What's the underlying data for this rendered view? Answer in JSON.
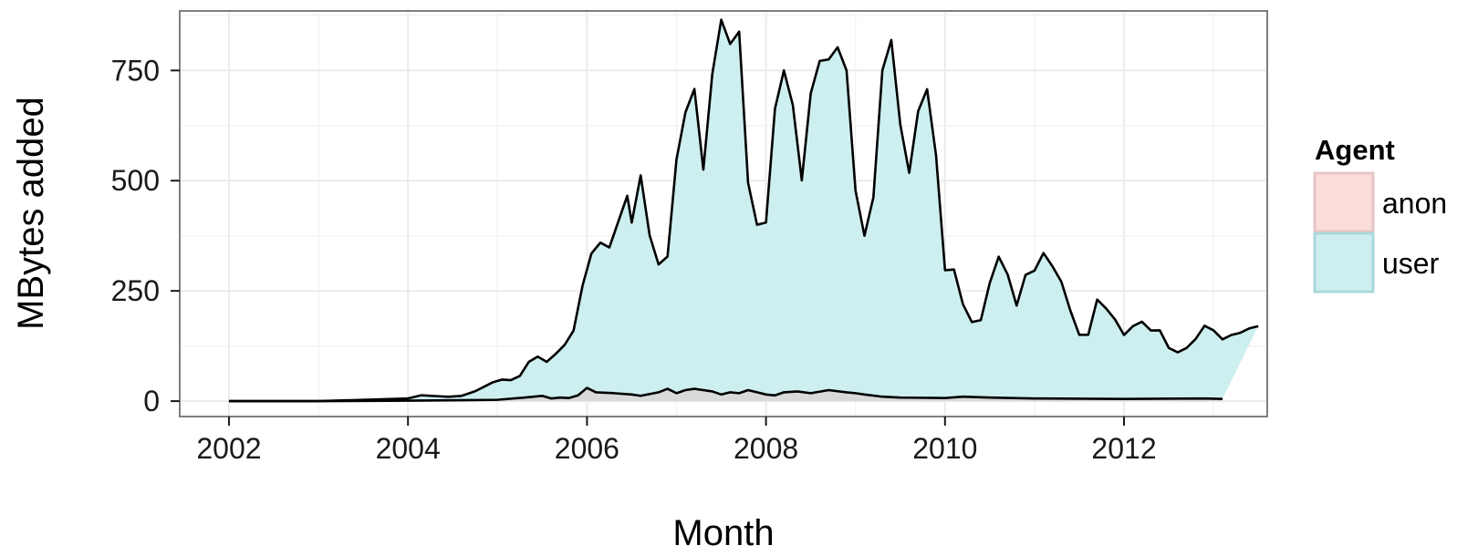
{
  "chart_data": {
    "type": "area",
    "stacked": true,
    "xlabel": "Month",
    "ylabel": "MBytes added",
    "xlim": [
      2001.45,
      2013.6
    ],
    "ylim": [
      -35,
      885
    ],
    "x_ticks": [
      2002,
      2004,
      2006,
      2008,
      2010,
      2012
    ],
    "x_tick_labels": [
      "2002",
      "2004",
      "2006",
      "2008",
      "2010",
      "2012"
    ],
    "y_ticks": [
      0,
      250,
      500,
      750
    ],
    "y_tick_labels": [
      "0",
      "250",
      "500",
      "750"
    ],
    "grid": true,
    "legend": {
      "title": "Agent",
      "position": "right"
    },
    "series": [
      {
        "name": "anon",
        "color": "#F8766D",
        "points": [
          [
            2002.0,
            0
          ],
          [
            2003.0,
            0
          ],
          [
            2004.0,
            1
          ],
          [
            2004.6,
            2
          ],
          [
            2005.0,
            3
          ],
          [
            2005.3,
            8
          ],
          [
            2005.5,
            12
          ],
          [
            2005.6,
            6
          ],
          [
            2005.7,
            8
          ],
          [
            2005.8,
            7
          ],
          [
            2005.9,
            13
          ],
          [
            2006.0,
            30
          ],
          [
            2006.1,
            20
          ],
          [
            2006.3,
            18
          ],
          [
            2006.5,
            15
          ],
          [
            2006.6,
            12
          ],
          [
            2006.8,
            20
          ],
          [
            2006.9,
            28
          ],
          [
            2007.0,
            18
          ],
          [
            2007.1,
            25
          ],
          [
            2007.2,
            28
          ],
          [
            2007.4,
            22
          ],
          [
            2007.5,
            15
          ],
          [
            2007.6,
            20
          ],
          [
            2007.7,
            18
          ],
          [
            2007.8,
            25
          ],
          [
            2007.9,
            20
          ],
          [
            2008.0,
            15
          ],
          [
            2008.1,
            13
          ],
          [
            2008.2,
            20
          ],
          [
            2008.35,
            22
          ],
          [
            2008.5,
            18
          ],
          [
            2008.7,
            25
          ],
          [
            2008.9,
            20
          ],
          [
            2009.0,
            18
          ],
          [
            2009.1,
            15
          ],
          [
            2009.3,
            10
          ],
          [
            2009.5,
            8
          ],
          [
            2010.0,
            7
          ],
          [
            2010.2,
            10
          ],
          [
            2010.5,
            8
          ],
          [
            2011.0,
            6
          ],
          [
            2012.0,
            5
          ],
          [
            2012.9,
            6
          ],
          [
            2013.1,
            5
          ]
        ]
      },
      {
        "name": "user",
        "color": "#00BFC4",
        "points": [
          [
            2002.0,
            0
          ],
          [
            2003.0,
            0
          ],
          [
            2004.0,
            5
          ],
          [
            2004.15,
            12
          ],
          [
            2004.3,
            10
          ],
          [
            2004.45,
            8
          ],
          [
            2004.6,
            10
          ],
          [
            2004.75,
            20
          ],
          [
            2004.85,
            30
          ],
          [
            2004.95,
            40
          ],
          [
            2005.05,
            45
          ],
          [
            2005.15,
            42
          ],
          [
            2005.25,
            50
          ],
          [
            2005.35,
            80
          ],
          [
            2005.45,
            90
          ],
          [
            2005.55,
            80
          ],
          [
            2005.65,
            100
          ],
          [
            2005.75,
            120
          ],
          [
            2005.85,
            150
          ],
          [
            2005.95,
            240
          ],
          [
            2006.05,
            310
          ],
          [
            2006.15,
            340
          ],
          [
            2006.25,
            330
          ],
          [
            2006.35,
            390
          ],
          [
            2006.45,
            450
          ],
          [
            2006.5,
            390
          ],
          [
            2006.6,
            500
          ],
          [
            2006.7,
            360
          ],
          [
            2006.8,
            290
          ],
          [
            2006.9,
            300
          ],
          [
            2007.0,
            530
          ],
          [
            2007.1,
            630
          ],
          [
            2007.2,
            680
          ],
          [
            2007.3,
            500
          ],
          [
            2007.4,
            720
          ],
          [
            2007.5,
            850
          ],
          [
            2007.6,
            790
          ],
          [
            2007.7,
            820
          ],
          [
            2007.8,
            470
          ],
          [
            2007.9,
            380
          ],
          [
            2008.0,
            390
          ],
          [
            2008.1,
            650
          ],
          [
            2008.2,
            730
          ],
          [
            2008.3,
            650
          ],
          [
            2008.4,
            480
          ],
          [
            2008.5,
            680
          ],
          [
            2008.6,
            750
          ],
          [
            2008.7,
            750
          ],
          [
            2008.8,
            780
          ],
          [
            2008.9,
            730
          ],
          [
            2009.0,
            460
          ],
          [
            2009.1,
            360
          ],
          [
            2009.2,
            450
          ],
          [
            2009.3,
            740
          ],
          [
            2009.4,
            810
          ],
          [
            2009.5,
            620
          ],
          [
            2009.6,
            510
          ],
          [
            2009.7,
            650
          ],
          [
            2009.8,
            700
          ],
          [
            2009.9,
            550
          ],
          [
            2010.0,
            290
          ],
          [
            2010.1,
            290
          ],
          [
            2010.2,
            210
          ],
          [
            2010.3,
            170
          ],
          [
            2010.4,
            175
          ],
          [
            2010.5,
            260
          ],
          [
            2010.6,
            320
          ],
          [
            2010.7,
            280
          ],
          [
            2010.8,
            210
          ],
          [
            2010.9,
            280
          ],
          [
            2011.0,
            290
          ],
          [
            2011.1,
            330
          ],
          [
            2011.2,
            300
          ],
          [
            2011.3,
            265
          ],
          [
            2011.4,
            200
          ],
          [
            2011.5,
            145
          ],
          [
            2011.6,
            145
          ],
          [
            2011.7,
            225
          ],
          [
            2011.8,
            205
          ],
          [
            2011.9,
            180
          ],
          [
            2012.0,
            145
          ],
          [
            2012.1,
            165
          ],
          [
            2012.2,
            175
          ],
          [
            2012.3,
            155
          ],
          [
            2012.4,
            155
          ],
          [
            2012.5,
            115
          ],
          [
            2012.6,
            105
          ],
          [
            2012.7,
            115
          ],
          [
            2012.8,
            135
          ],
          [
            2012.9,
            165
          ],
          [
            2013.0,
            155
          ],
          [
            2013.1,
            135
          ],
          [
            2013.2,
            145
          ],
          [
            2013.3,
            150
          ],
          [
            2013.4,
            160
          ],
          [
            2013.5,
            165
          ]
        ]
      }
    ]
  },
  "colors": {
    "anon_fill": "#FADCDA",
    "user_fill": "#CDEFF0",
    "line": "#000000",
    "grid": "#EBEBEB",
    "panel_border": "#7F7F7F"
  }
}
